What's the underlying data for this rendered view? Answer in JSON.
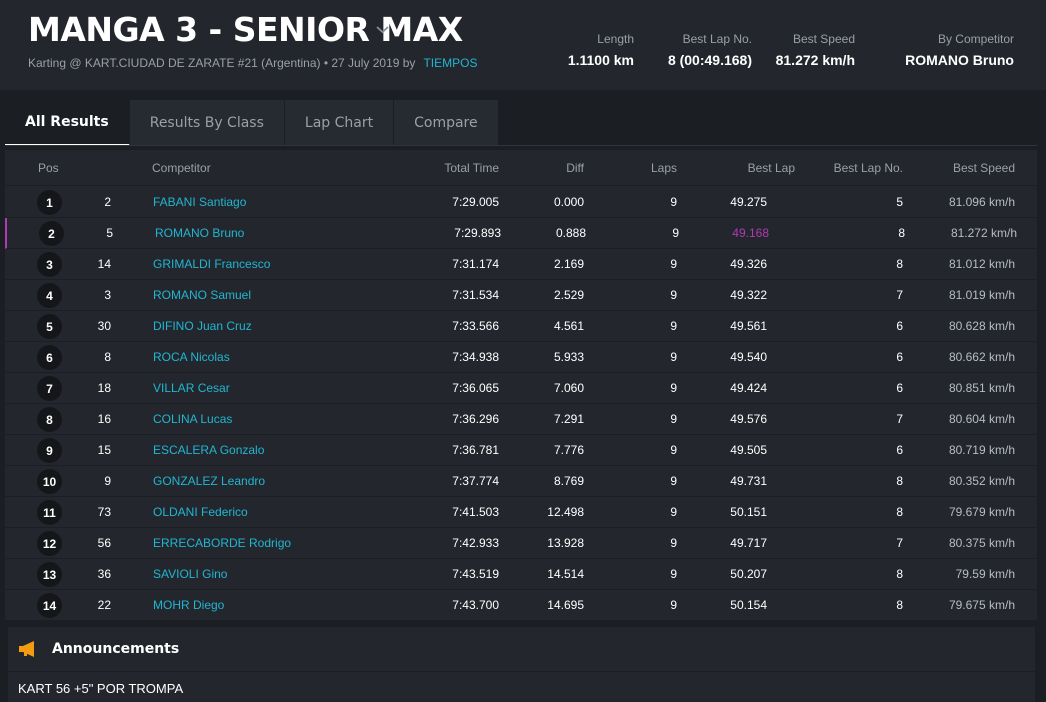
{
  "header": {
    "title": "MANGA 3 - SENIOR MAX",
    "subtitle": "Karting @ KART.CIUDAD DE ZARATE #21 (Argentina) • 27 July 2019 by",
    "subtitle_link": "TIEMPOS",
    "stats": [
      {
        "label": "Length",
        "value": "1.1100 km"
      },
      {
        "label": "Best Lap No.",
        "value": "8 (00:49.168)"
      },
      {
        "label": "Best Speed",
        "value": "81.272 km/h"
      },
      {
        "label": "By Competitor",
        "value": "ROMANO Bruno"
      }
    ]
  },
  "tabs": [
    "All Results",
    "Results By Class",
    "Lap Chart",
    "Compare"
  ],
  "active_tab": "All Results",
  "table": {
    "columns": {
      "pos": "Pos",
      "competitor": "Competitor",
      "total_time": "Total Time",
      "diff": "Diff",
      "laps": "Laps",
      "best_lap": "Best Lap",
      "best_lap_no": "Best Lap No.",
      "best_speed": "Best Speed"
    },
    "rows": [
      {
        "pos": "1",
        "num": "2",
        "name": "FABANI Santiago",
        "total": "7:29.005",
        "diff": "0.000",
        "laps": "9",
        "best": "49.275",
        "bestno": "5",
        "speed": "81.096 km/h"
      },
      {
        "pos": "2",
        "num": "5",
        "name": "ROMANO Bruno",
        "total": "7:29.893",
        "diff": "0.888",
        "laps": "9",
        "best": "49.168",
        "bestno": "8",
        "speed": "81.272 km/h"
      },
      {
        "pos": "3",
        "num": "14",
        "name": "GRIMALDI Francesco",
        "total": "7:31.174",
        "diff": "2.169",
        "laps": "9",
        "best": "49.326",
        "bestno": "8",
        "speed": "81.012 km/h"
      },
      {
        "pos": "4",
        "num": "3",
        "name": "ROMANO Samuel",
        "total": "7:31.534",
        "diff": "2.529",
        "laps": "9",
        "best": "49.322",
        "bestno": "7",
        "speed": "81.019 km/h"
      },
      {
        "pos": "5",
        "num": "30",
        "name": "DIFINO Juan Cruz",
        "total": "7:33.566",
        "diff": "4.561",
        "laps": "9",
        "best": "49.561",
        "bestno": "6",
        "speed": "80.628 km/h"
      },
      {
        "pos": "6",
        "num": "8",
        "name": "ROCA Nicolas",
        "total": "7:34.938",
        "diff": "5.933",
        "laps": "9",
        "best": "49.540",
        "bestno": "6",
        "speed": "80.662 km/h"
      },
      {
        "pos": "7",
        "num": "18",
        "name": "VILLAR Cesar",
        "total": "7:36.065",
        "diff": "7.060",
        "laps": "9",
        "best": "49.424",
        "bestno": "6",
        "speed": "80.851 km/h"
      },
      {
        "pos": "8",
        "num": "16",
        "name": "COLINA Lucas",
        "total": "7:36.296",
        "diff": "7.291",
        "laps": "9",
        "best": "49.576",
        "bestno": "7",
        "speed": "80.604 km/h"
      },
      {
        "pos": "9",
        "num": "15",
        "name": "ESCALERA Gonzalo",
        "total": "7:36.781",
        "diff": "7.776",
        "laps": "9",
        "best": "49.505",
        "bestno": "6",
        "speed": "80.719 km/h"
      },
      {
        "pos": "10",
        "num": "9",
        "name": "GONZALEZ Leandro",
        "total": "7:37.774",
        "diff": "8.769",
        "laps": "9",
        "best": "49.731",
        "bestno": "8",
        "speed": "80.352 km/h"
      },
      {
        "pos": "11",
        "num": "73",
        "name": "OLDANI Federico",
        "total": "7:41.503",
        "diff": "12.498",
        "laps": "9",
        "best": "50.151",
        "bestno": "8",
        "speed": "79.679 km/h"
      },
      {
        "pos": "12",
        "num": "56",
        "name": "ERRECABORDE Rodrigo",
        "total": "7:42.933",
        "diff": "13.928",
        "laps": "9",
        "best": "49.717",
        "bestno": "7",
        "speed": "80.375 km/h"
      },
      {
        "pos": "13",
        "num": "36",
        "name": "SAVIOLI Gino",
        "total": "7:43.519",
        "diff": "14.514",
        "laps": "9",
        "best": "50.207",
        "bestno": "8",
        "speed": "79.59 km/h"
      },
      {
        "pos": "14",
        "num": "22",
        "name": "MOHR Diego",
        "total": "7:43.700",
        "diff": "14.695",
        "laps": "9",
        "best": "50.154",
        "bestno": "8",
        "speed": "79.675 km/h"
      }
    ],
    "best_lap_row": "2"
  },
  "announcements": {
    "title": "Announcements",
    "text": "KART 56 +5\" POR TROMPA",
    "icon": "megaphone-icon"
  },
  "colors": {
    "accent": "#21b6d1",
    "best_lap": "#b03ab5",
    "announcement_icon": "#f39c12"
  }
}
